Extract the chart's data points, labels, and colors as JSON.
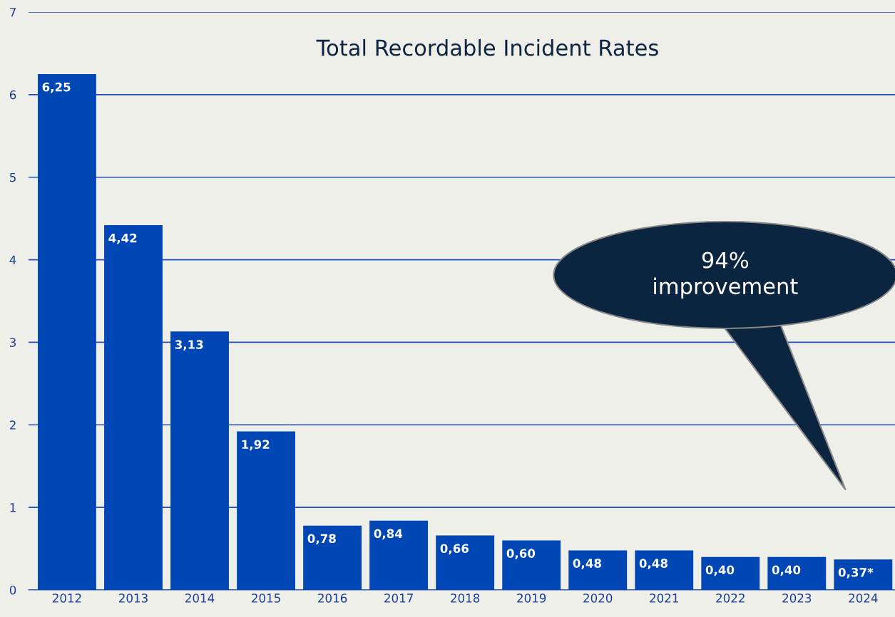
{
  "chart_data": {
    "type": "bar",
    "title": "Total Recordable Incident Rates",
    "categories": [
      "2012",
      "2013",
      "2014",
      "2015",
      "2016",
      "2017",
      "2018",
      "2019",
      "2020",
      "2021",
      "2022",
      "2023",
      "2024"
    ],
    "values": [
      6.25,
      4.42,
      3.13,
      1.92,
      0.78,
      0.84,
      0.66,
      0.6,
      0.48,
      0.48,
      0.4,
      0.4,
      0.37
    ],
    "value_labels": [
      "6,25",
      "4,42",
      "3,13",
      "1,92",
      "0,78",
      "0,84",
      "0,66",
      "0,60",
      "0,48",
      "0,48",
      "0,40",
      "0,40",
      "0,37*"
    ],
    "color": "#0047b5",
    "ylim": [
      0,
      7
    ],
    "yticks": [
      0,
      1,
      2,
      3,
      4,
      5,
      6,
      7
    ],
    "grid": "y",
    "annotations": [
      "94%\nimprovement"
    ]
  }
}
